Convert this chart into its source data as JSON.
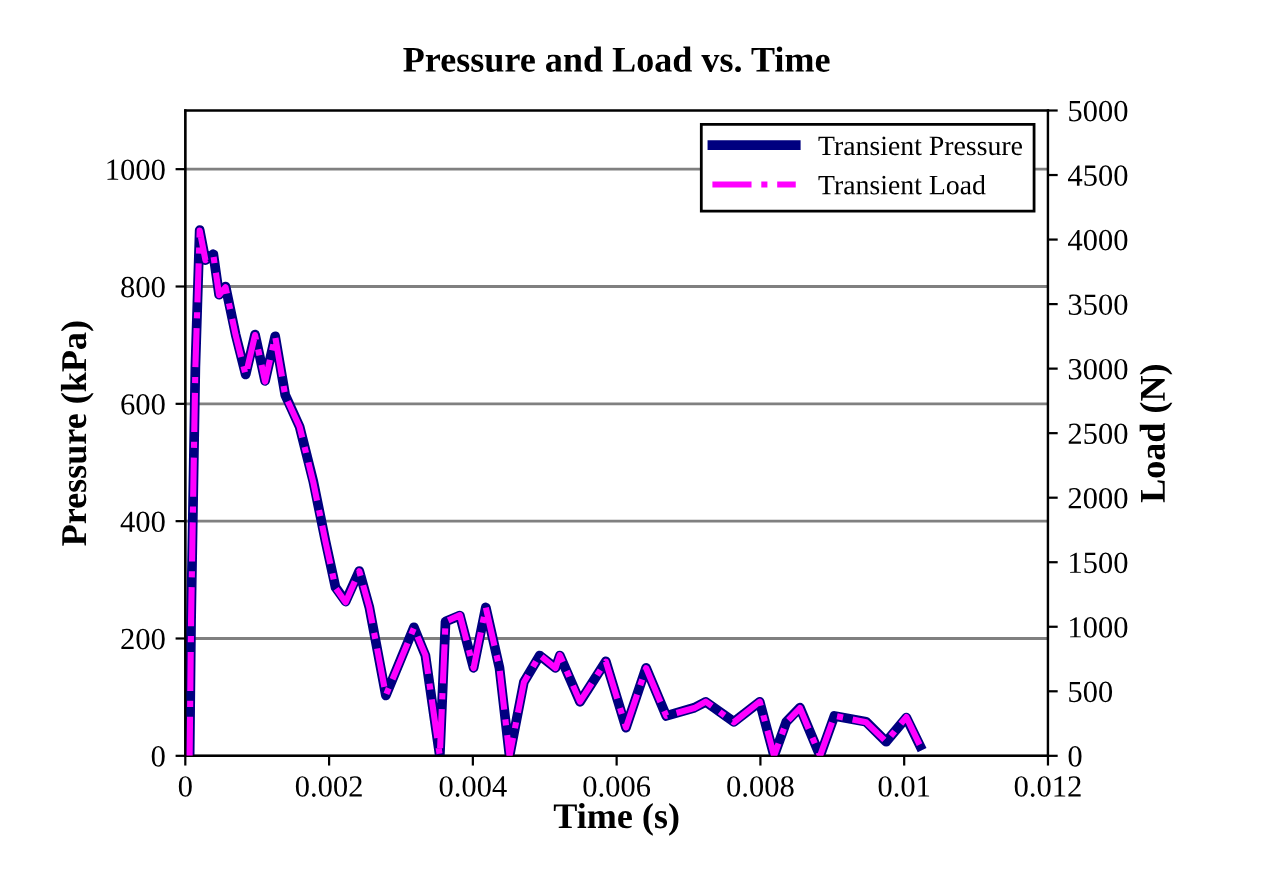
{
  "chart_data": {
    "type": "line",
    "title": "Pressure and Load vs. Time",
    "xlabel": "Time (s)",
    "ylabel": "Pressure (kPa)",
    "y2label": "Load (N)",
    "x": [
      6e-05,
      8e-05,
      0.00014,
      0.0002,
      0.00028,
      0.00039,
      0.00047,
      0.00056,
      0.0007,
      0.00084,
      0.00097,
      0.00111,
      0.00125,
      0.00139,
      0.00159,
      0.00178,
      0.00195,
      0.00209,
      0.00223,
      0.00242,
      0.00256,
      0.00279,
      0.00318,
      0.00334,
      0.00354,
      0.00362,
      0.00382,
      0.00401,
      0.00418,
      0.00437,
      0.00451,
      0.00471,
      0.00493,
      0.00515,
      0.00521,
      0.00549,
      0.00585,
      0.00613,
      0.00641,
      0.00669,
      0.00708,
      0.00724,
      0.00763,
      0.00799,
      0.00819,
      0.00836,
      0.00855,
      0.00883,
      0.00903,
      0.00947,
      0.00975,
      0.01003,
      0.01022
    ],
    "series": [
      {
        "name": "Transient Pressure",
        "color": "#000080",
        "line_style": "solid",
        "values": [
          0,
          229,
          663,
          896,
          845,
          855,
          786,
          800,
          718,
          650,
          718,
          639,
          715,
          615,
          561,
          468,
          366,
          287,
          263,
          315,
          253,
          103,
          219,
          171,
          0,
          229,
          239,
          150,
          253,
          150,
          0,
          126,
          171,
          150,
          171,
          92,
          161,
          48,
          150,
          68,
          82,
          92,
          58,
          92,
          0,
          58,
          82,
          0,
          68,
          58,
          24,
          65,
          17
        ]
      },
      {
        "name": "Transient Load",
        "color": "#ff00ff",
        "axis": "y2",
        "line_style": "dashdot",
        "values": [
          0,
          1040,
          3010,
          4070,
          3840,
          3880,
          3570,
          3630,
          3260,
          2950,
          3260,
          2900,
          3250,
          2790,
          2550,
          2120,
          1660,
          1300,
          1190,
          1430,
          1150,
          470,
          990,
          780,
          0,
          1040,
          1090,
          680,
          1150,
          680,
          0,
          570,
          780,
          680,
          780,
          420,
          730,
          220,
          680,
          310,
          370,
          420,
          260,
          420,
          0,
          260,
          370,
          0,
          310,
          260,
          110,
          300,
          80
        ]
      }
    ],
    "xlim": [
      0,
      0.012
    ],
    "xticks": [
      0,
      0.002,
      0.004,
      0.006,
      0.008,
      0.01,
      0.012
    ],
    "ylim": [
      0,
      1100
    ],
    "yticks": [
      0,
      200,
      400,
      600,
      800,
      1000
    ],
    "y2lim": [
      0,
      5000
    ],
    "y2ticks": [
      0,
      500,
      1000,
      1500,
      2000,
      2500,
      3000,
      3500,
      4000,
      4500,
      5000
    ],
    "grid": "y",
    "legend": "top right",
    "marker": "none"
  }
}
